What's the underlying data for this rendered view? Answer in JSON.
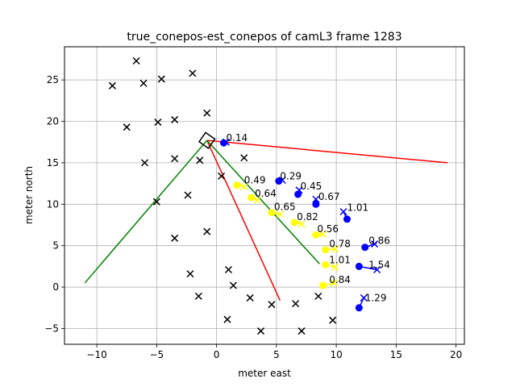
{
  "chart_data": {
    "type": "scatter",
    "title": "true_conepos-est_conepos of camL3 frame 1283",
    "xlabel": "meter east",
    "ylabel": "meter north",
    "xlim": [
      -12.7,
      20.7
    ],
    "ylim": [
      -6.9,
      29.0
    ],
    "xticks": [
      -10,
      -5,
      0,
      5,
      10,
      15,
      20
    ],
    "yticks": [
      -5,
      0,
      5,
      10,
      15,
      20,
      25
    ],
    "grid": true,
    "colors": {
      "black_markers": "#000000",
      "blue": "#0000ff",
      "yellow": "#ffff00",
      "red": "#ff0000",
      "green": "#008000",
      "grid": "#b0b0b0"
    },
    "black_x_markers": [
      [
        -6.7,
        27.3
      ],
      [
        -8.7,
        24.3
      ],
      [
        -6.1,
        24.6
      ],
      [
        -4.6,
        25.1
      ],
      [
        -2.0,
        25.8
      ],
      [
        -7.5,
        19.3
      ],
      [
        -4.9,
        19.9
      ],
      [
        -3.5,
        20.2
      ],
      [
        -0.8,
        21.0
      ],
      [
        -6.0,
        15.0
      ],
      [
        -3.5,
        15.5
      ],
      [
        -1.4,
        15.3
      ],
      [
        2.3,
        15.6
      ],
      [
        0.4,
        13.4
      ],
      [
        -2.4,
        11.1
      ],
      [
        -5.0,
        10.3
      ],
      [
        -0.8,
        6.7
      ],
      [
        -3.5,
        5.9
      ],
      [
        1.0,
        2.1
      ],
      [
        -2.2,
        1.6
      ],
      [
        1.4,
        0.2
      ],
      [
        -1.5,
        -1.1
      ],
      [
        2.8,
        -1.3
      ],
      [
        6.6,
        -2.0
      ],
      [
        8.5,
        -1.1
      ],
      [
        0.9,
        -3.9
      ],
      [
        4.6,
        -2.1
      ],
      [
        3.7,
        -5.3
      ],
      [
        7.1,
        -5.3
      ],
      [
        9.7,
        -4.0
      ]
    ],
    "blue_points": [
      [
        0.6,
        17.4
      ],
      [
        5.2,
        12.8
      ],
      [
        6.8,
        11.2
      ],
      [
        8.3,
        10.0
      ],
      [
        10.9,
        8.2
      ],
      [
        12.4,
        4.8
      ],
      [
        11.9,
        2.5
      ],
      [
        11.9,
        -2.5
      ]
    ],
    "blue_x_markers": [
      [
        0.8,
        17.5
      ],
      [
        5.5,
        12.9
      ],
      [
        6.9,
        11.7
      ],
      [
        8.3,
        10.6
      ],
      [
        10.6,
        9.1
      ],
      [
        13.2,
        5.2
      ],
      [
        13.4,
        2.1
      ],
      [
        12.3,
        -1.3
      ]
    ],
    "yellow_points": [
      [
        1.7,
        12.3
      ],
      [
        2.9,
        10.8
      ],
      [
        4.6,
        9.0
      ],
      [
        6.5,
        7.8
      ],
      [
        8.3,
        6.3
      ],
      [
        9.1,
        4.5
      ],
      [
        9.1,
        2.7
      ],
      [
        8.9,
        0.2
      ]
    ],
    "yellow_x_markers": [
      [
        2.3,
        12.1
      ],
      [
        3.4,
        10.5
      ],
      [
        5.3,
        8.8
      ],
      [
        7.1,
        7.6
      ],
      [
        8.9,
        6.4
      ],
      [
        9.9,
        4.6
      ],
      [
        9.9,
        2.4
      ],
      [
        9.8,
        0.5
      ]
    ],
    "point_labels": [
      {
        "text": "0.14",
        "x": 0.8,
        "y": 17.6
      },
      {
        "text": "0.29",
        "x": 5.3,
        "y": 13.0
      },
      {
        "text": "0.45",
        "x": 7.0,
        "y": 11.8
      },
      {
        "text": "0.67",
        "x": 8.5,
        "y": 10.5
      },
      {
        "text": "1.01",
        "x": 10.9,
        "y": 9.2
      },
      {
        "text": "0.86",
        "x": 12.7,
        "y": 5.2
      },
      {
        "text": "1.54",
        "x": 12.7,
        "y": 2.3
      },
      {
        "text": "1.29",
        "x": 12.4,
        "y": -1.7
      },
      {
        "text": "0.49",
        "x": 2.3,
        "y": 12.5
      },
      {
        "text": "0.64",
        "x": 3.2,
        "y": 10.9
      },
      {
        "text": "0.65",
        "x": 4.8,
        "y": 9.3
      },
      {
        "text": "0.82",
        "x": 6.7,
        "y": 8.1
      },
      {
        "text": "0.56",
        "x": 8.4,
        "y": 6.6
      },
      {
        "text": "0.78",
        "x": 9.4,
        "y": 4.8
      },
      {
        "text": "1.01",
        "x": 9.4,
        "y": 2.9
      },
      {
        "text": "0.84",
        "x": 9.4,
        "y": 0.5
      }
    ],
    "blue_segments": [
      [
        [
          0.6,
          17.4
        ],
        [
          0.8,
          17.5
        ]
      ],
      [
        [
          5.2,
          12.8
        ],
        [
          5.5,
          12.9
        ]
      ],
      [
        [
          6.8,
          11.2
        ],
        [
          6.9,
          11.7
        ]
      ],
      [
        [
          8.3,
          10.0
        ],
        [
          8.3,
          10.6
        ]
      ],
      [
        [
          10.9,
          8.2
        ],
        [
          10.6,
          9.1
        ]
      ],
      [
        [
          12.4,
          4.8
        ],
        [
          13.2,
          5.2
        ]
      ],
      [
        [
          11.9,
          2.5
        ],
        [
          13.4,
          2.1
        ]
      ],
      [
        [
          11.9,
          -2.5
        ],
        [
          12.3,
          -1.3
        ]
      ]
    ],
    "yellow_segments": [
      [
        [
          1.7,
          12.3
        ],
        [
          2.3,
          12.1
        ]
      ],
      [
        [
          2.9,
          10.8
        ],
        [
          3.4,
          10.5
        ]
      ],
      [
        [
          4.6,
          9.0
        ],
        [
          5.3,
          8.8
        ]
      ],
      [
        [
          6.5,
          7.8
        ],
        [
          7.1,
          7.6
        ]
      ],
      [
        [
          8.3,
          6.3
        ],
        [
          8.9,
          6.4
        ]
      ],
      [
        [
          9.1,
          4.5
        ],
        [
          9.9,
          4.6
        ]
      ],
      [
        [
          9.1,
          2.7
        ],
        [
          9.9,
          2.4
        ]
      ],
      [
        [
          8.9,
          0.2
        ],
        [
          9.8,
          0.5
        ]
      ]
    ],
    "red_lines": [
      [
        [
          -0.8,
          17.7
        ],
        [
          19.3,
          15.0
        ]
      ],
      [
        [
          -0.8,
          17.7
        ],
        [
          5.3,
          -1.6
        ]
      ]
    ],
    "green_lines": [
      [
        [
          -11.0,
          0.5
        ],
        [
          -0.8,
          17.7
        ]
      ],
      [
        [
          -0.8,
          17.7
        ],
        [
          8.6,
          2.8
        ]
      ]
    ],
    "camera_marker": {
      "x": -0.8,
      "y": 17.7,
      "heading_deg": 35
    }
  }
}
